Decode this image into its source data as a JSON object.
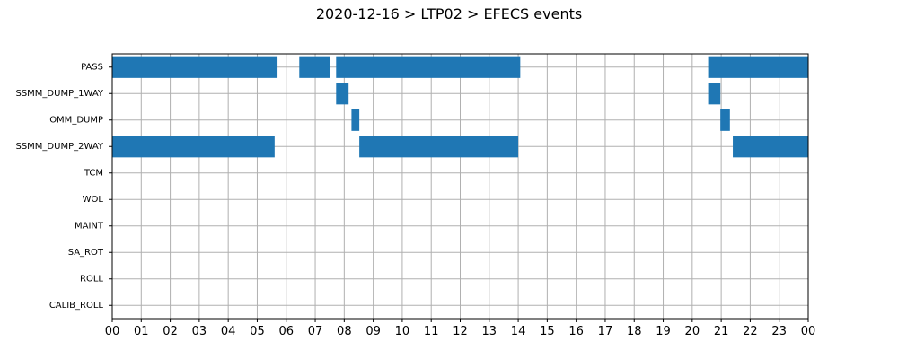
{
  "chart_data": {
    "type": "bar",
    "orientation": "horizontal-timeline",
    "title": "2020-12-16 > LTP02 > EFECS events",
    "xlabel": "",
    "ylabel": "",
    "xlim": [
      0,
      24
    ],
    "x_unit": "hour",
    "x_tick_labels": [
      "00",
      "01",
      "02",
      "03",
      "04",
      "05",
      "06",
      "07",
      "08",
      "09",
      "10",
      "11",
      "12",
      "13",
      "14",
      "15",
      "16",
      "17",
      "18",
      "19",
      "20",
      "21",
      "22",
      "23",
      "00"
    ],
    "categories": [
      "PASS",
      "SSMM_DUMP_1WAY",
      "OMM_DUMP",
      "SSMM_DUMP_2WAY",
      "TCM",
      "WOL",
      "MAINT",
      "SA_ROT",
      "ROLL",
      "CALIB_ROLL"
    ],
    "grid": true,
    "bar_color": "#1f77b4",
    "events": [
      {
        "category": "PASS",
        "intervals": [
          [
            0.0,
            5.7
          ],
          [
            6.45,
            7.5
          ],
          [
            7.72,
            14.07
          ],
          [
            20.55,
            24.0
          ]
        ]
      },
      {
        "category": "SSMM_DUMP_1WAY",
        "intervals": [
          [
            7.72,
            8.15
          ],
          [
            20.55,
            20.97
          ]
        ]
      },
      {
        "category": "OMM_DUMP",
        "intervals": [
          [
            8.25,
            8.52
          ],
          [
            20.97,
            21.3
          ]
        ]
      },
      {
        "category": "SSMM_DUMP_2WAY",
        "intervals": [
          [
            0.0,
            5.6
          ],
          [
            8.52,
            14.0
          ],
          [
            21.4,
            24.0
          ]
        ]
      },
      {
        "category": "TCM",
        "intervals": []
      },
      {
        "category": "WOL",
        "intervals": []
      },
      {
        "category": "MAINT",
        "intervals": []
      },
      {
        "category": "SA_ROT",
        "intervals": []
      },
      {
        "category": "ROLL",
        "intervals": []
      },
      {
        "category": "CALIB_ROLL",
        "intervals": []
      }
    ]
  }
}
